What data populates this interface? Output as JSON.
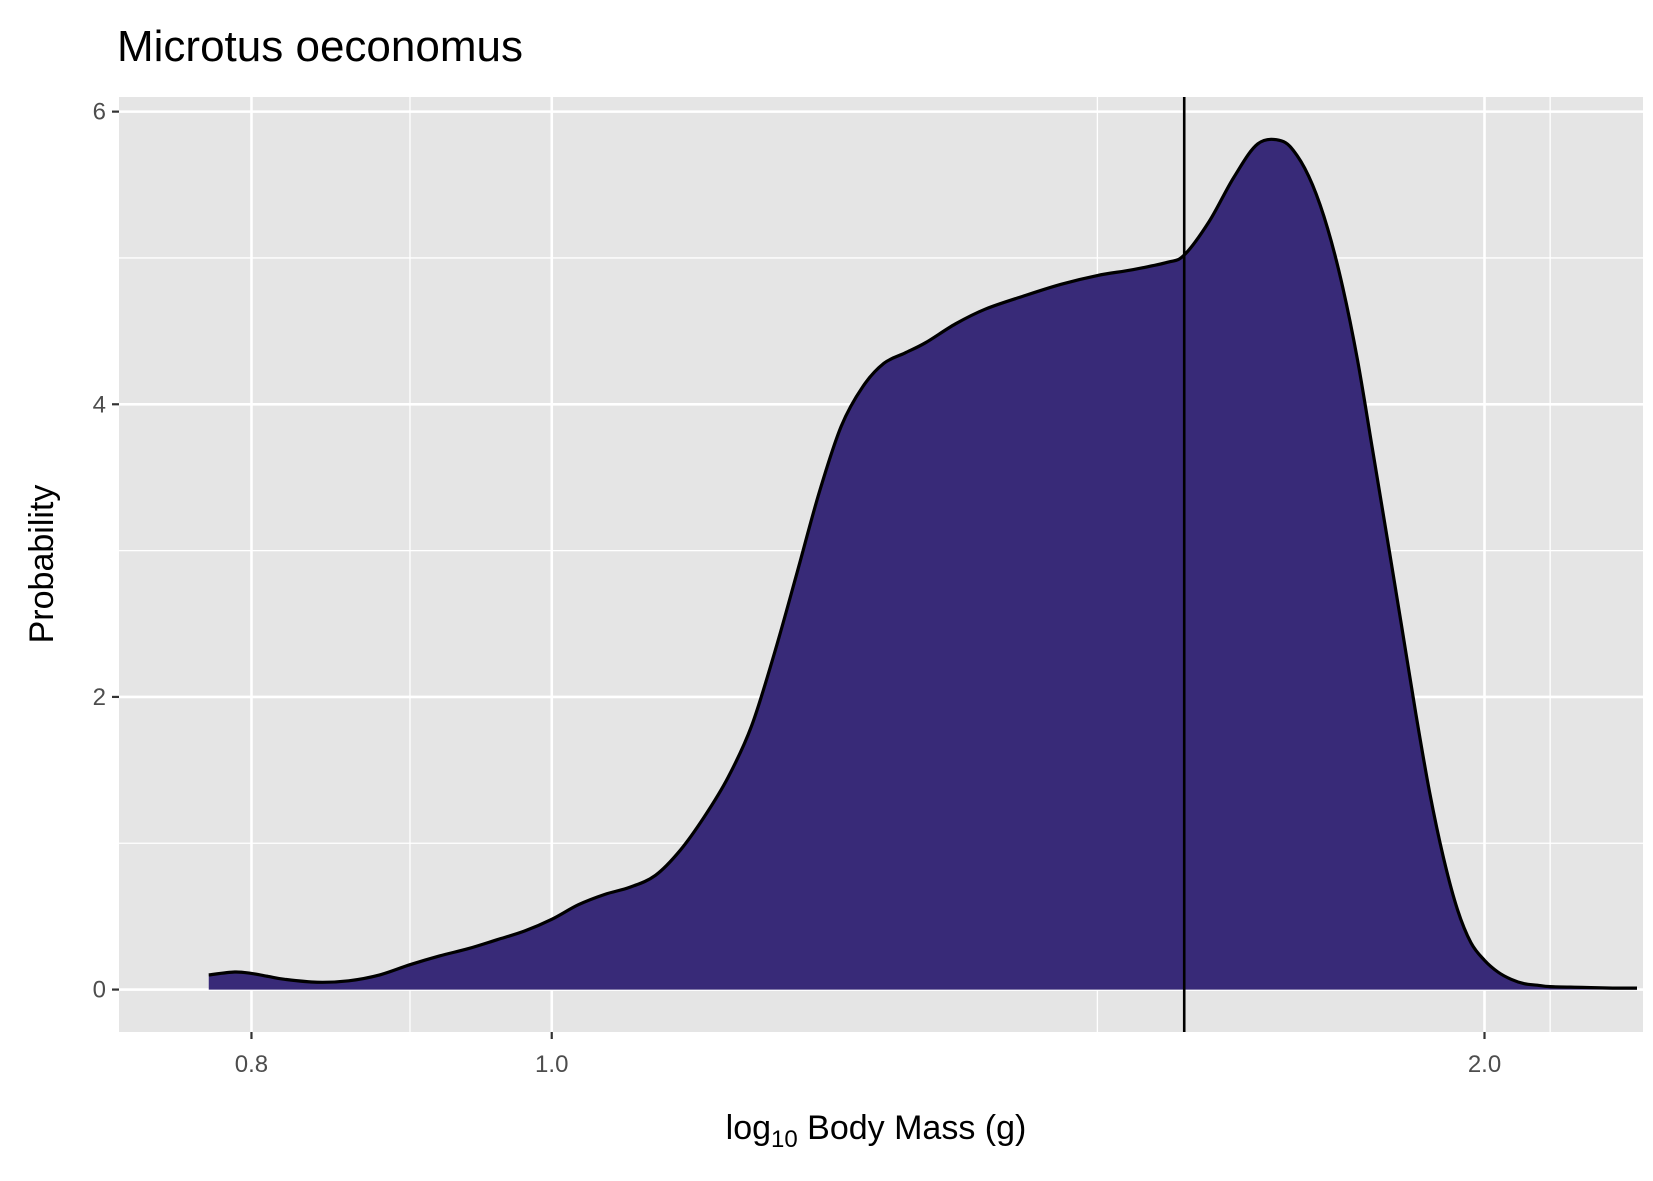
{
  "chart_data": {
    "type": "area",
    "title": "Microtus oeconomus",
    "xlabel": {
      "base": "log",
      "subscript": "10",
      "rest": " Body Mass (g)"
    },
    "ylabel": "Probability",
    "x_scale": "log10-of-log10-mass",
    "x_major_ticks": [
      {
        "value": 0.8,
        "label": "0.8"
      },
      {
        "value": 1.0,
        "label": "1.0"
      },
      {
        "value": 2.0,
        "label": "2.0"
      }
    ],
    "x_minor_grid": [
      0.9,
      1.5,
      2.1
    ],
    "xlim": [
      0.725,
      2.25
    ],
    "y_major_ticks": [
      {
        "value": 0,
        "label": "0"
      },
      {
        "value": 2,
        "label": "2"
      },
      {
        "value": 4,
        "label": "4"
      },
      {
        "value": 6,
        "label": "6"
      }
    ],
    "y_minor_grid": [
      1,
      3,
      5
    ],
    "ylim": [
      -0.29,
      6.1
    ],
    "grid": true,
    "panel_color": "#e5e5e5",
    "fill_color": "#382a78",
    "line_color": "#000000",
    "vline_x": 1.6,
    "density": {
      "x": [
        0.775,
        0.79,
        0.8,
        0.81,
        0.82,
        0.84,
        0.86,
        0.88,
        0.9,
        0.92,
        0.94,
        0.96,
        0.98,
        1.0,
        1.02,
        1.04,
        1.06,
        1.08,
        1.1,
        1.12,
        1.14,
        1.16,
        1.18,
        1.2,
        1.22,
        1.24,
        1.26,
        1.28,
        1.3,
        1.32,
        1.35,
        1.38,
        1.42,
        1.46,
        1.5,
        1.54,
        1.58,
        1.6,
        1.63,
        1.66,
        1.69,
        1.72,
        1.74,
        1.76,
        1.78,
        1.8,
        1.82,
        1.84,
        1.86,
        1.88,
        1.9,
        1.92,
        1.94,
        1.96,
        1.98,
        2.0,
        2.02,
        2.04,
        2.06,
        2.08,
        2.1,
        2.15,
        2.2,
        2.24
      ],
      "y": [
        0.1,
        0.12,
        0.11,
        0.09,
        0.07,
        0.05,
        0.06,
        0.1,
        0.17,
        0.23,
        0.28,
        0.34,
        0.4,
        0.48,
        0.58,
        0.65,
        0.7,
        0.78,
        0.95,
        1.18,
        1.45,
        1.8,
        2.3,
        2.85,
        3.4,
        3.85,
        4.12,
        4.28,
        4.35,
        4.42,
        4.55,
        4.65,
        4.74,
        4.82,
        4.88,
        4.92,
        4.97,
        5.02,
        5.25,
        5.55,
        5.78,
        5.8,
        5.7,
        5.5,
        5.2,
        4.8,
        4.3,
        3.7,
        3.1,
        2.5,
        1.9,
        1.35,
        0.9,
        0.55,
        0.32,
        0.2,
        0.12,
        0.07,
        0.04,
        0.03,
        0.02,
        0.015,
        0.01,
        0.01
      ]
    }
  }
}
